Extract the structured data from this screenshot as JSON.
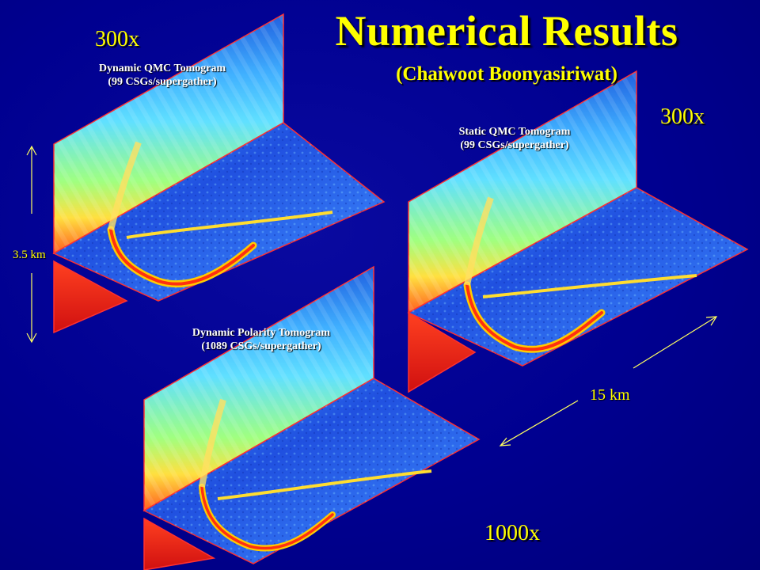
{
  "title": "Numerical Results",
  "subtitle": "(Chaiwoot Boonyasiriwat)",
  "panels": [
    {
      "magnification": "300x",
      "line1": "Dynamic QMC Tomogram",
      "line2": "(99 CSGs/supergather)"
    },
    {
      "magnification": "300x",
      "line1": "Static QMC Tomogram",
      "line2": "(99 CSGs/supergather)"
    },
    {
      "magnification": "1000x",
      "line1": "Dynamic Polarity Tomogram",
      "line2": "(1089 CSGs/supergather)"
    }
  ],
  "dimensions": {
    "depth": "3.5 km",
    "width": "15 km"
  },
  "colors": {
    "background": "#00008a",
    "title": "#ffff00",
    "label": "#ffffff",
    "border": "#ff3030"
  }
}
